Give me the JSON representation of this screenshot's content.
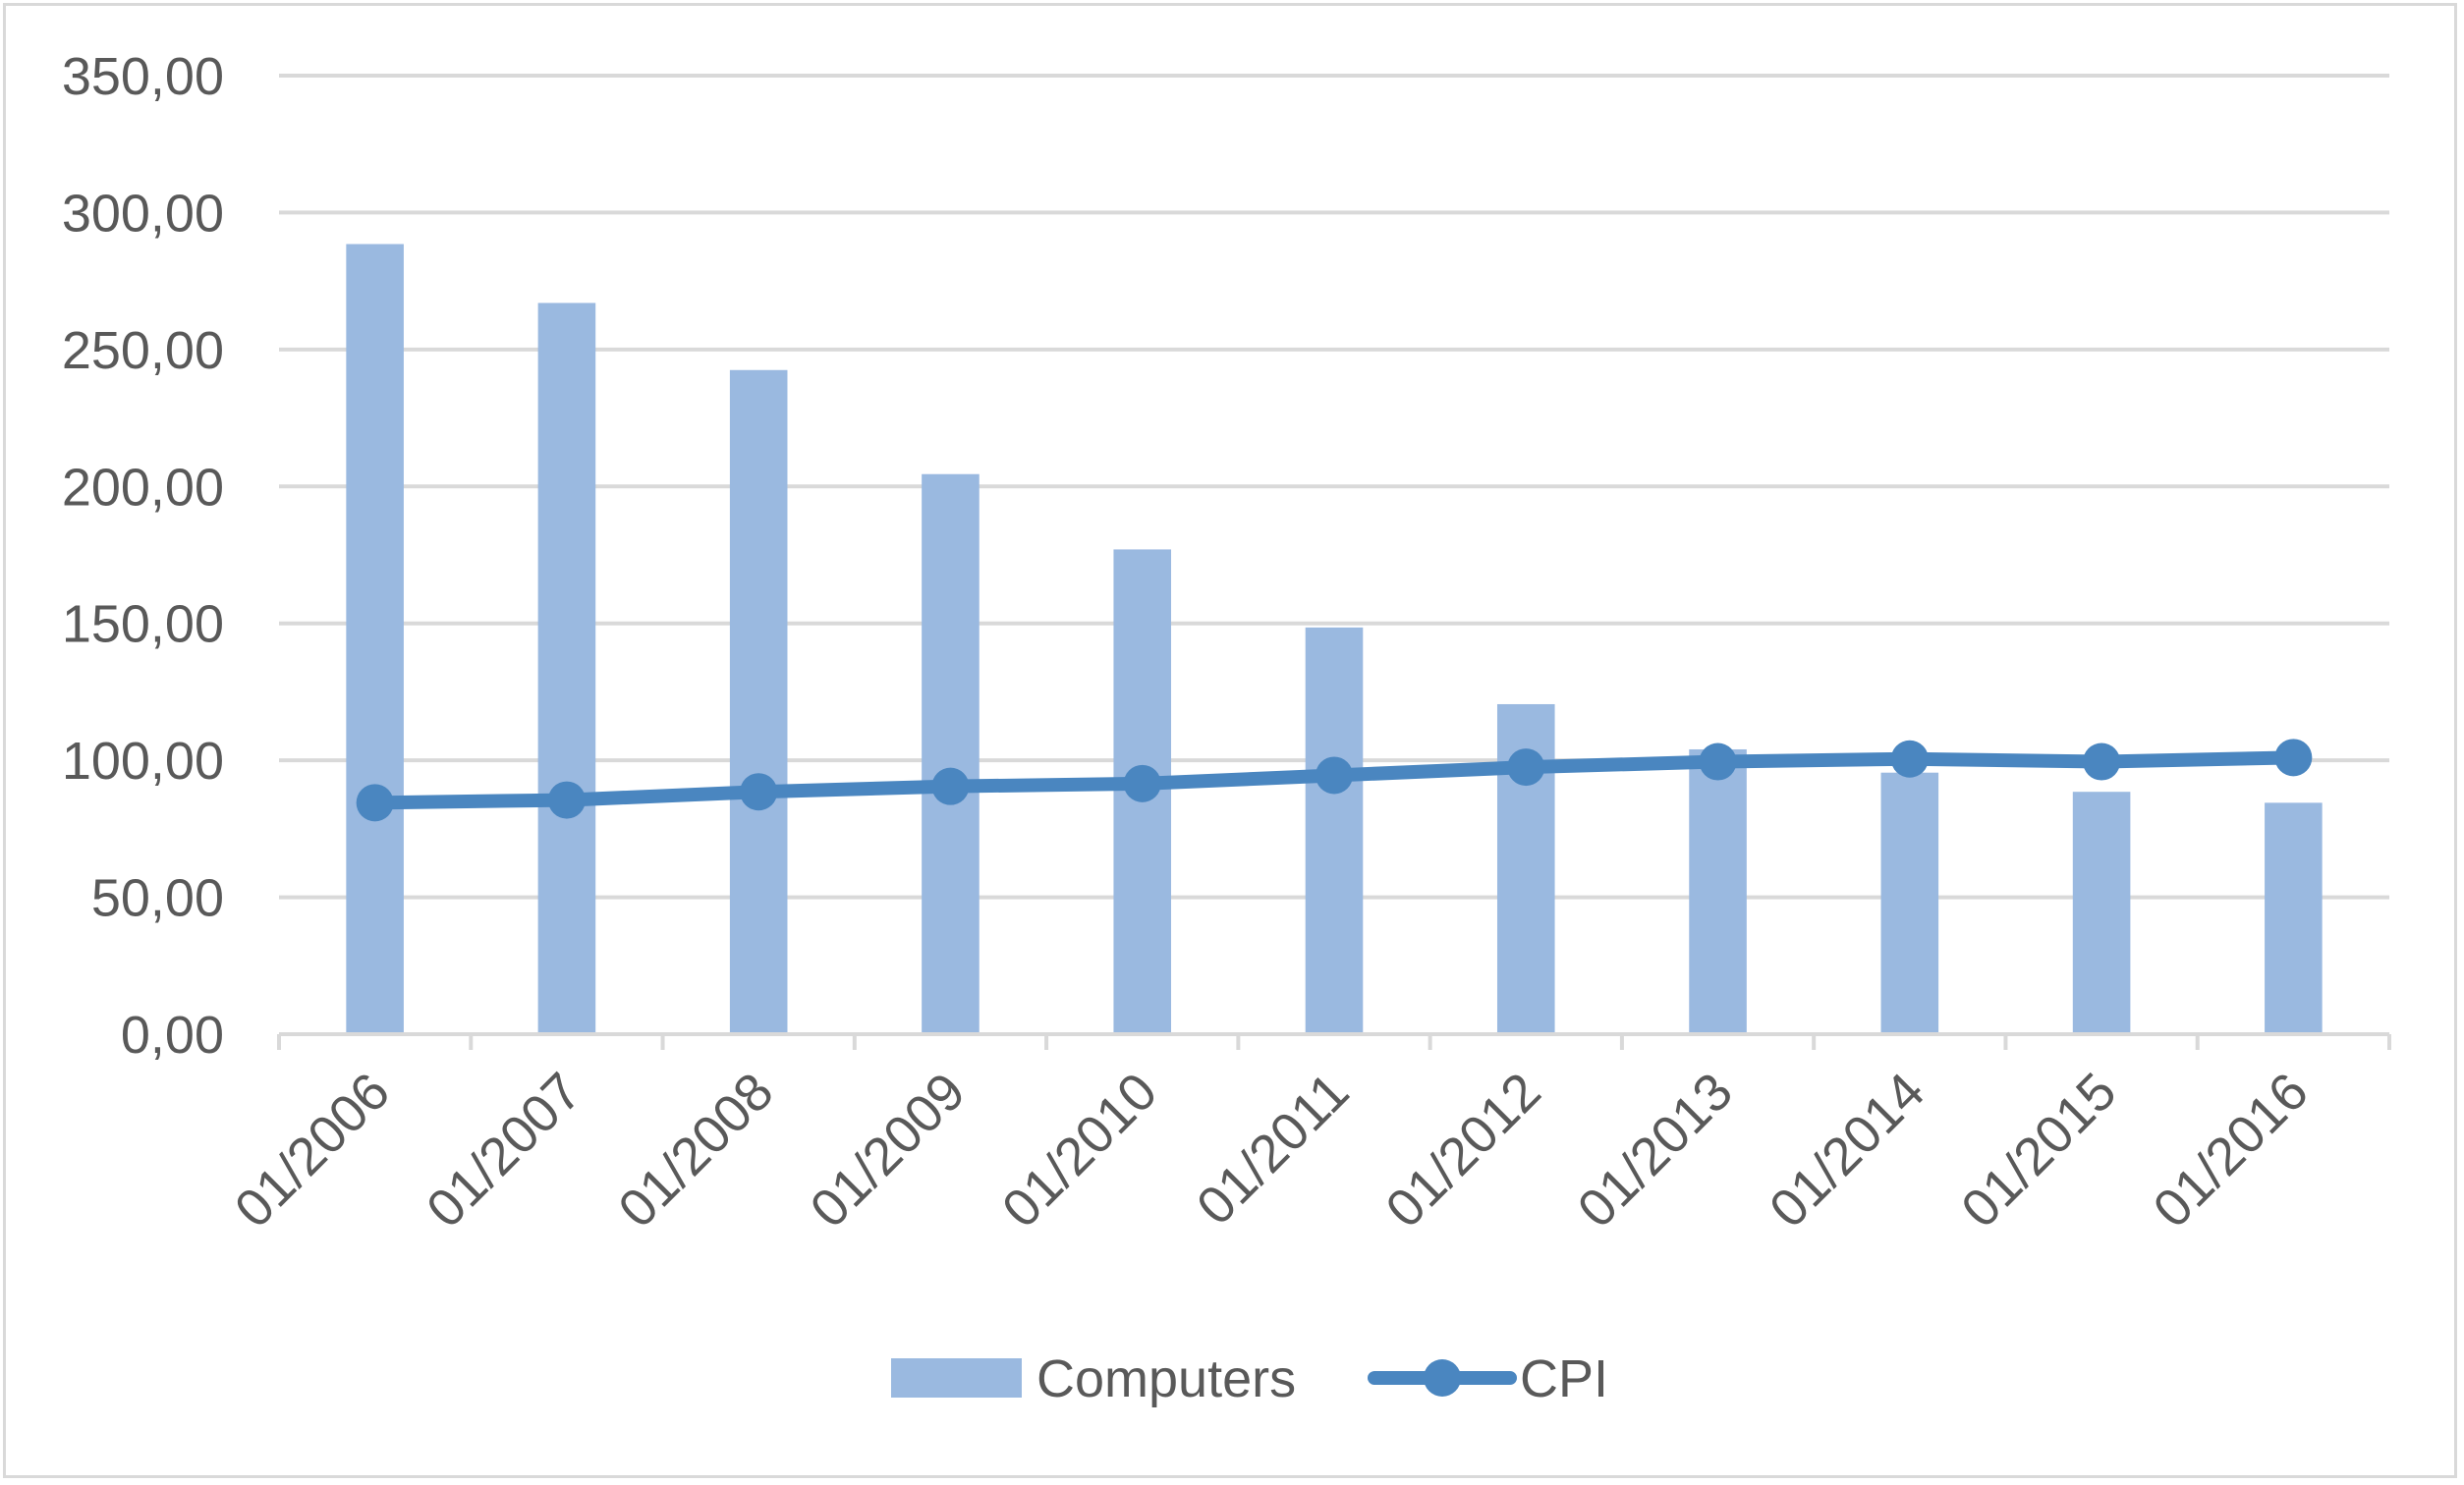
{
  "chart_data": {
    "type": "bar",
    "categories": [
      "01/2006",
      "01/2007",
      "01/2008",
      "01/2009",
      "01/2010",
      "01/2011",
      "01/2012",
      "01/2013",
      "01/2014",
      "01/2015",
      "01/2016"
    ],
    "series": [
      {
        "name": "Computers",
        "type": "bar",
        "color": "#9ab9e0",
        "values": [
          288.5,
          267.0,
          242.5,
          204.5,
          177.0,
          148.5,
          120.5,
          104.0,
          95.5,
          88.5,
          84.5
        ]
      },
      {
        "name": "CPI",
        "type": "line",
        "marker": "circle",
        "color": "#4a86c0",
        "values": [
          84.5,
          85.5,
          88.5,
          90.5,
          91.5,
          94.5,
          97.5,
          99.5,
          100.5,
          99.5,
          101.0
        ]
      }
    ],
    "y_ticks": [
      "0,00",
      "50,00",
      "100,00",
      "150,00",
      "200,00",
      "250,00",
      "300,00",
      "350,00"
    ],
    "ylim": [
      0,
      350
    ],
    "y_step": 50,
    "title": "",
    "xlabel": "",
    "ylabel": "",
    "grid": true,
    "legend_position": "bottom"
  }
}
